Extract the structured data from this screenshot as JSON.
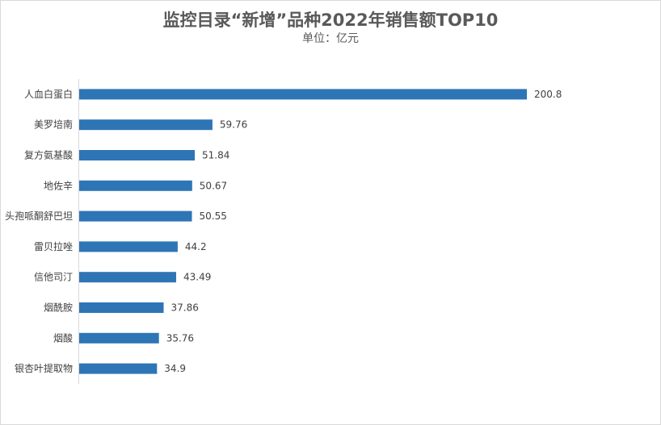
{
  "chart_data": {
    "type": "bar",
    "orientation": "horizontal",
    "title": "监控目录“新增”品种2022年销售额TOP10",
    "subtitle": "单位：亿元",
    "categories": [
      "人血白蛋白",
      "美罗培南",
      "复方氨基酸",
      "地佐辛",
      "头孢哌酮舒巴坦",
      "雷贝拉唑",
      "信他司汀",
      "烟酰胺",
      "烟酸",
      "银杏叶提取物"
    ],
    "values": [
      200.8,
      59.76,
      51.84,
      50.67,
      50.55,
      44.2,
      43.49,
      37.86,
      35.76,
      34.9
    ],
    "xlim": [
      0,
      230
    ],
    "grid": false,
    "legend": "none",
    "bar_color": "#2e75b6",
    "data_labels": true
  }
}
